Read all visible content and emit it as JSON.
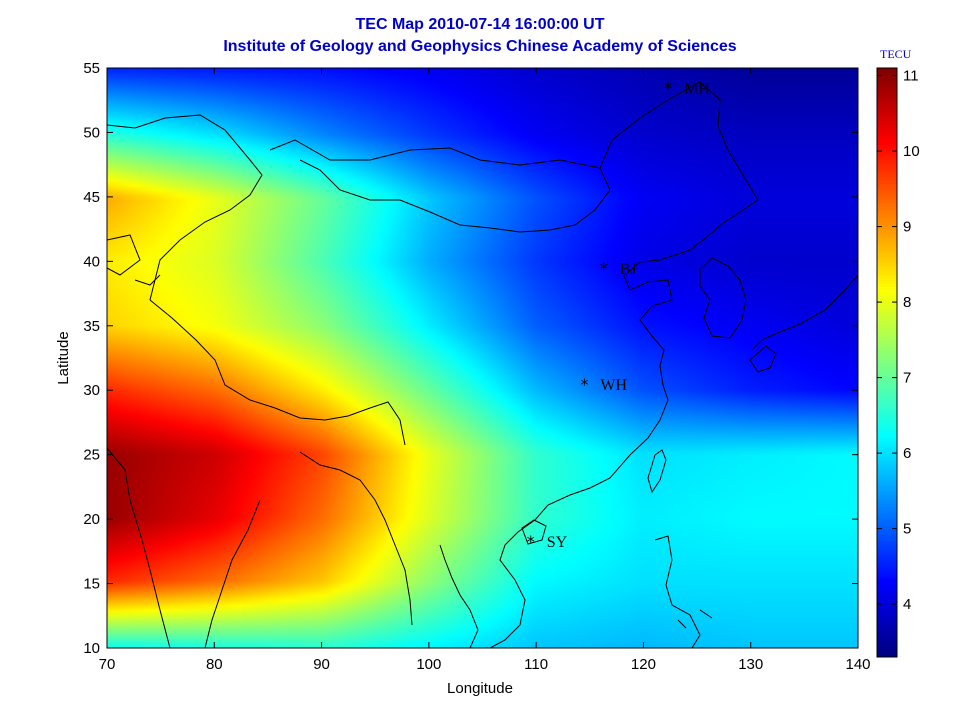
{
  "title": {
    "line1": "TEC Map 2010-07-14 16:00:00 UT",
    "line2": "Institute of Geology and Geophysics Chinese Academy of Sciences"
  },
  "colorbar": {
    "unit": "TECU",
    "min": 3.3,
    "max": 11.1,
    "ticks": [
      "4",
      "5",
      "6",
      "7",
      "8",
      "9",
      "10",
      "11"
    ],
    "colormap": "jet"
  },
  "chart_data": {
    "type": "heatmap",
    "xlabel": "Longitude",
    "ylabel": "Latitude",
    "xlim": [
      70,
      140
    ],
    "ylim": [
      10,
      55
    ],
    "xticks": [
      "70",
      "80",
      "90",
      "100",
      "110",
      "120",
      "130",
      "140"
    ],
    "yticks": [
      "10",
      "15",
      "20",
      "25",
      "30",
      "35",
      "40",
      "45",
      "50",
      "55"
    ],
    "stations": [
      {
        "name": "MH",
        "lon": 122.3,
        "lat": 53.5
      },
      {
        "name": "BJ",
        "lon": 116.3,
        "lat": 39.5
      },
      {
        "name": "WH",
        "lon": 114.5,
        "lat": 30.5
      },
      {
        "name": "SY",
        "lon": 109.5,
        "lat": 18.3
      }
    ],
    "tec_grid": {
      "lons": [
        70,
        80,
        90,
        100,
        110,
        120,
        130,
        140
      ],
      "lats": [
        55,
        50,
        45,
        40,
        35,
        30,
        25,
        20,
        15,
        10
      ],
      "values": [
        [
          4.6,
          4.5,
          4.4,
          4.2,
          3.9,
          3.7,
          3.5,
          3.5
        ],
        [
          6.5,
          6.0,
          5.3,
          4.7,
          4.2,
          3.9,
          3.8,
          3.8
        ],
        [
          8.8,
          8.0,
          7.0,
          5.8,
          4.9,
          4.2,
          4.0,
          4.0
        ],
        [
          8.3,
          7.9,
          6.8,
          5.6,
          4.7,
          4.1,
          3.9,
          3.9
        ],
        [
          8.5,
          8.1,
          7.3,
          6.1,
          5.0,
          4.4,
          4.2,
          4.0
        ],
        [
          9.8,
          9.3,
          8.3,
          7.0,
          5.7,
          4.9,
          4.5,
          4.3
        ],
        [
          10.9,
          10.5,
          9.6,
          8.0,
          6.6,
          6.0,
          6.1,
          6.2
        ],
        [
          10.9,
          10.3,
          9.3,
          7.9,
          6.6,
          6.1,
          6.2,
          6.2
        ],
        [
          9.8,
          9.3,
          8.6,
          7.3,
          6.2,
          6.0,
          6.0,
          6.0
        ],
        [
          6.4,
          6.5,
          6.6,
          6.2,
          5.8,
          5.7,
          5.8,
          5.8
        ]
      ]
    }
  }
}
